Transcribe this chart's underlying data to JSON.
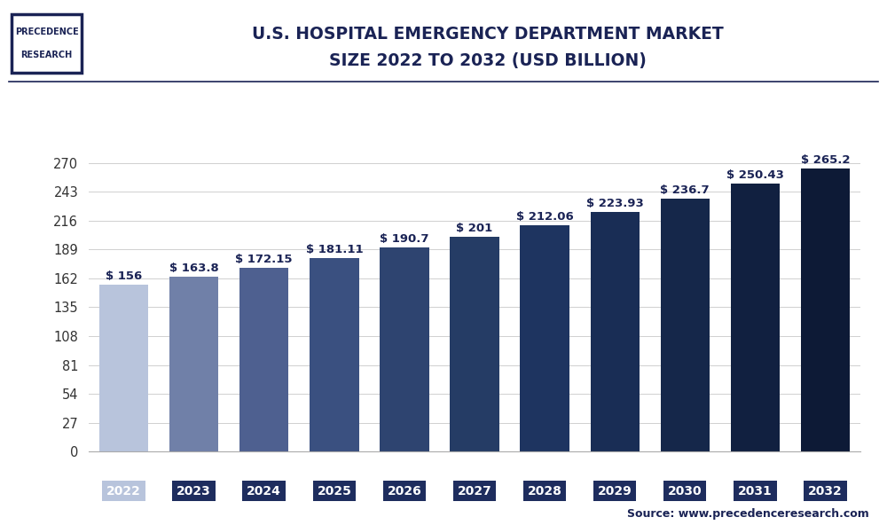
{
  "categories": [
    "2022",
    "2023",
    "2024",
    "2025",
    "2026",
    "2027",
    "2028",
    "2029",
    "2030",
    "2031",
    "2032"
  ],
  "values": [
    156,
    163.8,
    172.15,
    181.11,
    190.7,
    201,
    212.06,
    223.93,
    236.7,
    250.43,
    265.2
  ],
  "labels": [
    "$ 156",
    "$ 163.8",
    "$ 172.15",
    "$ 181.11",
    "$ 190.7",
    "$ 201",
    "$ 212.06",
    "$ 223.93",
    "$ 236.7",
    "$ 250.43",
    "$ 265.2"
  ],
  "bar_colors": [
    "#b8c4dc",
    "#7080a8",
    "#4e6090",
    "#3a5080",
    "#2e4470",
    "#253c65",
    "#1e3460",
    "#192d55",
    "#15274a",
    "#112040",
    "#0d1a36"
  ],
  "tick_label_bg_2022": "#b8c4dc",
  "tick_label_bg_others": "#1e2d5e",
  "tick_label_color": "#ffffff",
  "title_line1": "U.S. HOSPITAL EMERGENCY DEPARTMENT MARKET",
  "title_line2": "SIZE 2022 TO 2032 (USD BILLION)",
  "title_color": "#1a2355",
  "source_text": "Source: www.precedenceresearch.com",
  "source_color": "#1a2355",
  "background_color": "#ffffff",
  "plot_bg_color": "#ffffff",
  "ytick_values": [
    0,
    27,
    54,
    81,
    108,
    135,
    162,
    189,
    216,
    243,
    270
  ],
  "ylim": [
    0,
    285
  ],
  "grid_color": "#d0d0d0",
  "bar_label_color": "#1a2355",
  "bar_label_fontsize": 9.5,
  "logo_text_line1": "PRECEDENCE",
  "logo_text_line2": "RESEARCH"
}
